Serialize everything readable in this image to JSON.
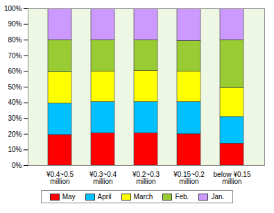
{
  "chart_data": {
    "type": "bar",
    "stacked": true,
    "categories": [
      "¥0.4~0.5\nmillion",
      "¥0.3~0.4\nmillion",
      "¥0.2~0.3\nmillion",
      "¥0.15~0.2\nmillion",
      "below ¥0.15\nmillion"
    ],
    "series": [
      {
        "name": "May",
        "color": "#ff0000",
        "values": [
          19.5,
          20.5,
          20.5,
          20,
          14
        ]
      },
      {
        "name": "April",
        "color": "#00c0ff",
        "values": [
          20,
          20,
          20,
          20.5,
          17
        ]
      },
      {
        "name": "March",
        "color": "#ffff00",
        "values": [
          20,
          19.5,
          20,
          19.5,
          18.5
        ]
      },
      {
        "name": "Feb.",
        "color": "#99cc33",
        "values": [
          20.5,
          20,
          19.5,
          19.5,
          30.5
        ]
      },
      {
        "name": "Jan.",
        "color": "#cc99ff",
        "values": [
          20,
          20,
          20,
          20.5,
          20
        ]
      }
    ],
    "ylim": [
      0,
      100
    ],
    "yticks": [
      {
        "value": 0,
        "label": "0%"
      },
      {
        "value": 10,
        "label": "10%"
      },
      {
        "value": 20,
        "label": "20%"
      },
      {
        "value": 30,
        "label": "30%"
      },
      {
        "value": 40,
        "label": "40%"
      },
      {
        "value": 50,
        "label": "50%"
      },
      {
        "value": 60,
        "label": "60%"
      },
      {
        "value": 70,
        "label": "70%"
      },
      {
        "value": 80,
        "label": "80%"
      },
      {
        "value": 90,
        "label": "90%"
      },
      {
        "value": 100,
        "label": "100%"
      }
    ],
    "grid": false,
    "legend": "bottom"
  }
}
